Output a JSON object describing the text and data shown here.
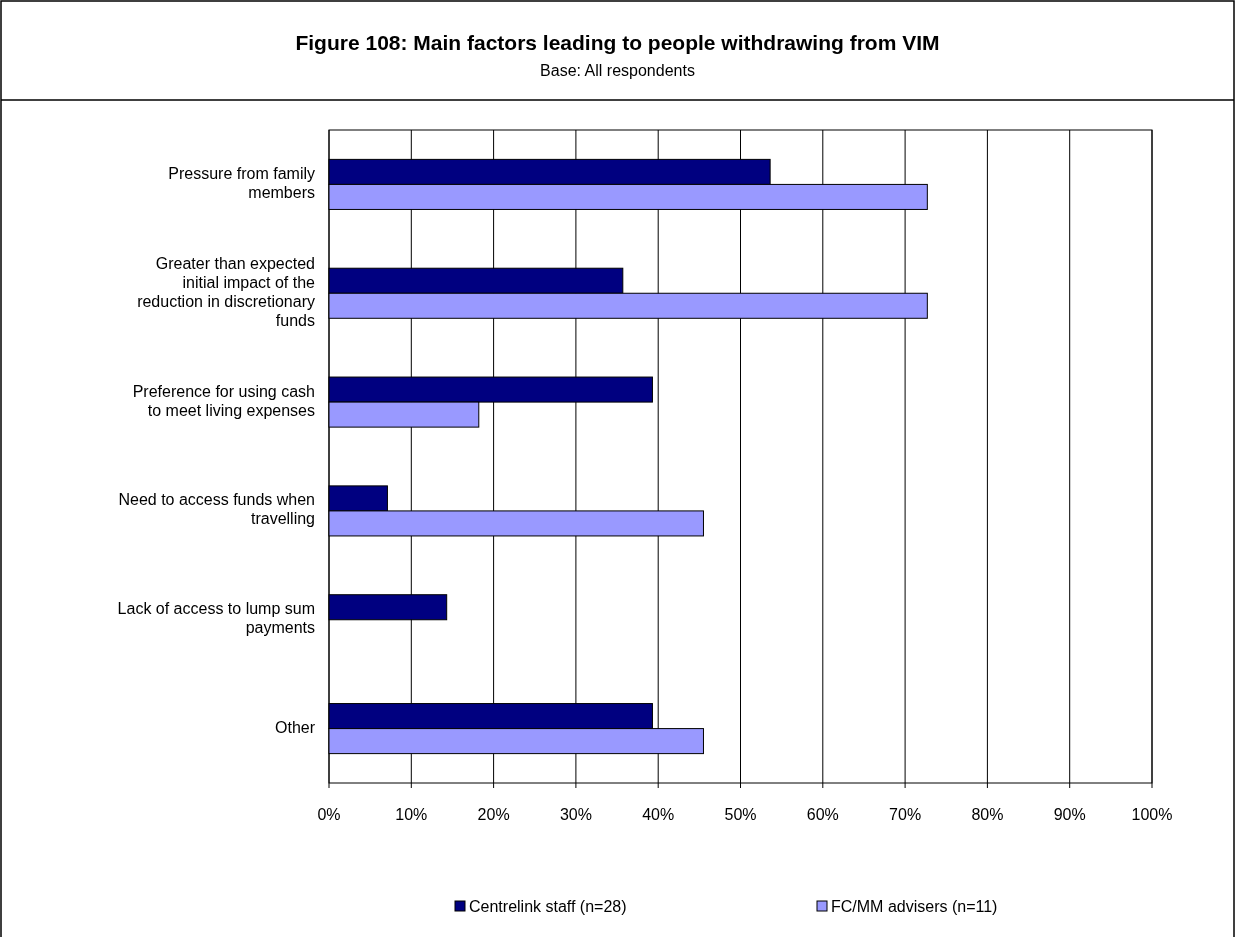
{
  "chart_data": {
    "type": "bar",
    "orientation": "horizontal",
    "title": "Figure 108: Main factors leading to people withdrawing from VIM",
    "subtitle": "Base: All respondents",
    "categories": [
      "Pressure from family members",
      "Greater than expected initial impact of the reduction in discretionary funds",
      "Preference for using cash to meet living expenses",
      "Need to access funds when travelling",
      "Lack of access to lump sum payments",
      "Other"
    ],
    "series": [
      {
        "name": "Centrelink staff (n=28)",
        "color": "#000080",
        "values": [
          53.6,
          35.7,
          39.3,
          7.1,
          14.3,
          39.3
        ]
      },
      {
        "name": "FC/MM advisers (n=11)",
        "color": "#9999ff",
        "values": [
          72.7,
          72.7,
          18.2,
          45.5,
          null,
          45.5
        ]
      }
    ],
    "xlim": [
      0,
      100
    ],
    "xticks": [
      {
        "value": 0,
        "label": "0%"
      },
      {
        "value": 10,
        "label": "10%"
      },
      {
        "value": 20,
        "label": "20%"
      },
      {
        "value": 30,
        "label": "30%"
      },
      {
        "value": 40,
        "label": "40%"
      },
      {
        "value": 50,
        "label": "50%"
      },
      {
        "value": 60,
        "label": "60%"
      },
      {
        "value": 70,
        "label": "70%"
      },
      {
        "value": 80,
        "label": "80%"
      },
      {
        "value": 90,
        "label": "90%"
      },
      {
        "value": 100,
        "label": "100%"
      }
    ],
    "grid": "x",
    "legend": "bottom"
  }
}
